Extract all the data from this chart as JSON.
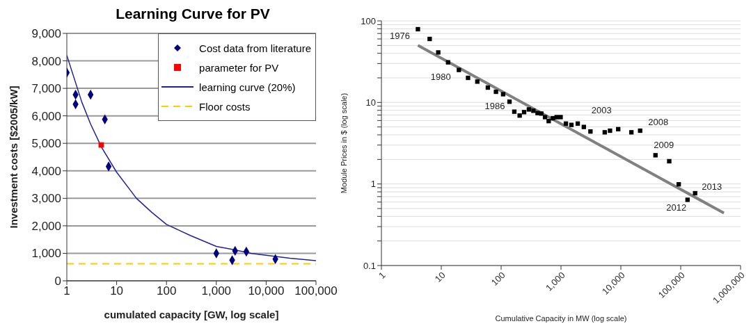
{
  "chart_data": [
    {
      "type": "scatter",
      "title": "Learning Curve for PV",
      "xlabel": "cumulated capacity [GW, log scale]",
      "ylabel": "Investment costs [$2005/kW]",
      "log": "x",
      "xlim": [
        1,
        100000
      ],
      "xticks": [
        1,
        10,
        100,
        {
          "value": 1000,
          "label": "1,000"
        },
        {
          "value": 10000,
          "label": "10,000"
        },
        {
          "value": 100000,
          "label": "100,000"
        }
      ],
      "ylim": [
        0,
        9000
      ],
      "yticks": [
        0,
        {
          "value": 1000,
          "label": "1,000"
        },
        {
          "value": 2000,
          "label": "2,000"
        },
        {
          "value": 3000,
          "label": "3,000"
        },
        {
          "value": 4000,
          "label": "4,000"
        },
        {
          "value": 5000,
          "label": "5,000"
        },
        {
          "value": 6000,
          "label": "6,000"
        },
        {
          "value": 7000,
          "label": "7,000"
        },
        {
          "value": 8000,
          "label": "8,000"
        },
        {
          "value": 9000,
          "label": "9,000"
        }
      ],
      "grid": "y",
      "legend": "top right",
      "series": [
        {
          "name": "Cost data from literature",
          "marker": "diamond",
          "color": "#000080",
          "x": [
            1,
            1.5,
            1.5,
            3,
            5.8,
            6.9,
            1000,
            2080,
            2380,
            4000,
            15300
          ],
          "values": [
            7570,
            6770,
            6420,
            6770,
            5870,
            4160,
            1000,
            750,
            1090,
            1060,
            790
          ]
        },
        {
          "name": "parameter for PV",
          "marker": "square",
          "color": "#ff0000",
          "x": [
            4.9
          ],
          "values": [
            4940
          ]
        },
        {
          "name": "learning curve (20%)",
          "type": "line",
          "marker": "none",
          "color": "#2020a0",
          "x": [
            1,
            2,
            3,
            5,
            10,
            25,
            50,
            100,
            300,
            1000,
            2000,
            5000,
            10000,
            30000,
            100000
          ],
          "values": [
            8200,
            6500,
            5700,
            4850,
            3950,
            3000,
            2500,
            2050,
            1650,
            1250,
            1150,
            1000,
            930,
            820,
            730
          ]
        },
        {
          "name": "Floor costs",
          "type": "line",
          "marker": "none",
          "line_style": "dashed",
          "color": "#ffcc00",
          "x": [
            1,
            100000
          ],
          "values": [
            620,
            620
          ]
        }
      ]
    },
    {
      "type": "scatter",
      "xlabel": "Cumulative Capacity in MW (log scale)",
      "ylabel": "Module Prices in $ (log scale)",
      "log": "xy",
      "xlim": [
        1,
        1000000
      ],
      "xticks": [
        1,
        10,
        100,
        {
          "value": 1000,
          "label": "1,000"
        },
        {
          "value": 10000,
          "label": "10,000"
        },
        {
          "value": 100000,
          "label": "100,000"
        },
        {
          "value": 1000000,
          "label": "1,000,000"
        }
      ],
      "ylim": [
        0.1,
        100
      ],
      "yticks": [
        0.1,
        {
          "value": 0.2,
          "label": null
        },
        {
          "value": 0.3,
          "label": null
        },
        {
          "value": 0.4,
          "label": null
        },
        {
          "value": 0.5,
          "label": null
        },
        {
          "value": 0.6,
          "label": null
        },
        {
          "value": 0.7,
          "label": null
        },
        {
          "value": 0.8,
          "label": null
        },
        {
          "value": 0.9,
          "label": null
        },
        1,
        {
          "value": 2,
          "label": null
        },
        {
          "value": 3,
          "label": null
        },
        {
          "value": 4,
          "label": null
        },
        {
          "value": 5,
          "label": null
        },
        {
          "value": 6,
          "label": null
        },
        {
          "value": 7,
          "label": null
        },
        {
          "value": 8,
          "label": null
        },
        {
          "value": 9,
          "label": null
        },
        10,
        {
          "value": 20,
          "label": null
        },
        {
          "value": 30,
          "label": null
        },
        {
          "value": 40,
          "label": null
        },
        {
          "value": 50,
          "label": null
        },
        {
          "value": 60,
          "label": null
        },
        {
          "value": 70,
          "label": null
        },
        {
          "value": 80,
          "label": null
        },
        {
          "value": 90,
          "label": null
        },
        100
      ],
      "grid": "y",
      "legend": false,
      "series": [
        {
          "marker": "square",
          "color": "#000000",
          "x": [
            4.07,
            6.4,
            8.9,
            13,
            19.7,
            28,
            40,
            60,
            82,
            108,
            138,
            166,
            204,
            242,
            291,
            346,
            406,
            469,
            541,
            623,
            733,
            845,
            985,
            1208,
            1493,
            1905,
            2408,
            3105,
            5380,
            6590,
            9040,
            15000,
            21000,
            37900,
            64300,
            92700,
            130000,
            174000
          ],
          "values": [
            79,
            60,
            41,
            31,
            25,
            20,
            18,
            15.2,
            13.5,
            12.6,
            10.2,
            7.7,
            6.9,
            7.6,
            8.2,
            7.9,
            7.4,
            7.3,
            6.6,
            5.9,
            6.4,
            6.6,
            6.6,
            5.5,
            5.3,
            5.5,
            5.0,
            4.4,
            4.3,
            4.5,
            4.7,
            4.3,
            4.5,
            2.25,
            1.9,
            0.99,
            0.64,
            0.77
          ]
        },
        {
          "type": "line",
          "marker": "none",
          "color": "#808080",
          "x": [
            4.07,
            527000
          ],
          "values": [
            50,
            0.44
          ]
        }
      ],
      "annotations": [
        {
          "text": "1976",
          "x": 4.07,
          "y": 79
        },
        {
          "text": "1980",
          "x": 19.7,
          "y": 25
        },
        {
          "text": "1986",
          "x": 166,
          "y": 7.7
        },
        {
          "text": "2003",
          "x": 3105,
          "y": 4.4
        },
        {
          "text": "2008",
          "x": 21000,
          "y": 4.5
        },
        {
          "text": "2009",
          "x": 37900,
          "y": 2.25
        },
        {
          "text": "2012",
          "x": 130000,
          "y": 0.64
        },
        {
          "text": "2013",
          "x": 174000,
          "y": 0.77
        }
      ]
    }
  ]
}
